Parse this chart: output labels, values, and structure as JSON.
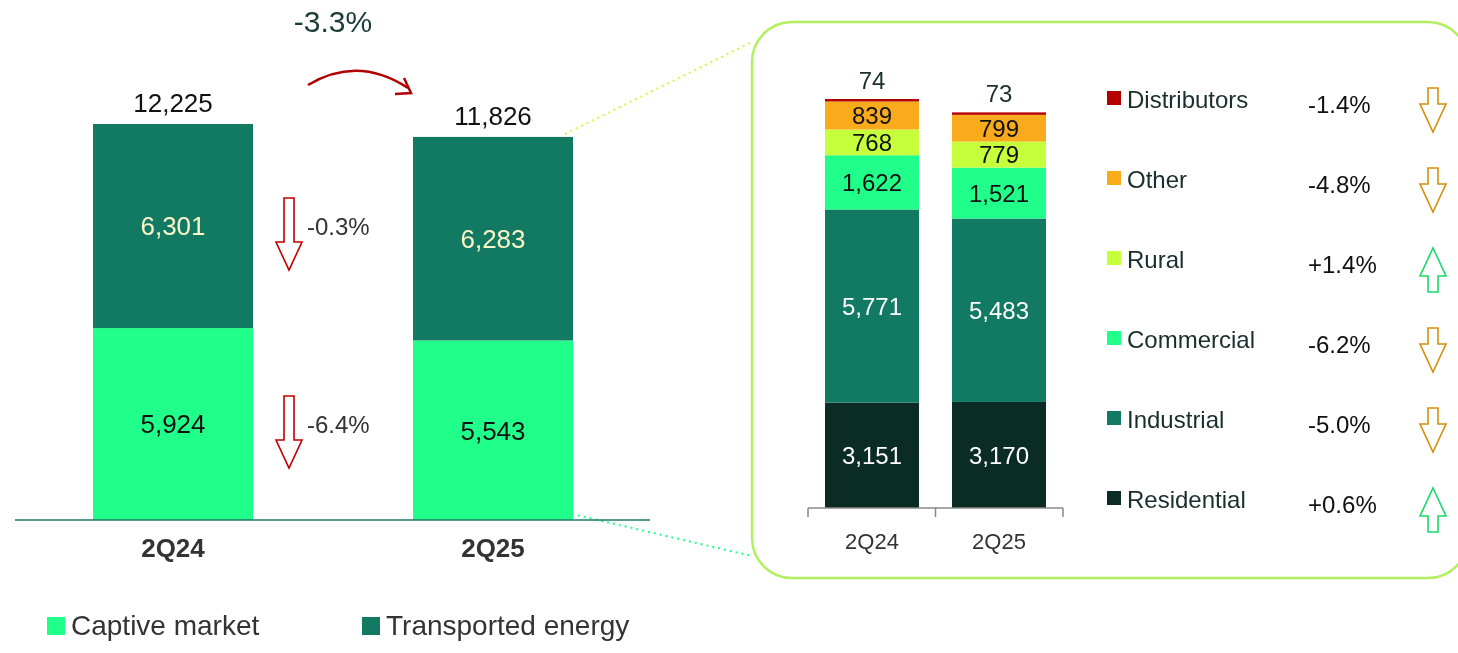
{
  "chart_data": [
    {
      "type": "bar",
      "stacked": true,
      "categories": [
        "2Q24",
        "2Q25"
      ],
      "series": [
        {
          "name": "Captive market",
          "color": "#20ff8a",
          "values": [
            5924,
            5543
          ],
          "value_labels": [
            "5,924",
            "5,543"
          ]
        },
        {
          "name": "Transported energy",
          "color": "#127a62",
          "values": [
            6301,
            6283
          ],
          "value_labels": [
            "6,301",
            "6,283"
          ]
        }
      ],
      "totals": [
        "12,225",
        "11,826"
      ],
      "legend": "bottom",
      "annotations": [
        "-3.3%",
        "-6.4%",
        "-0.3%"
      ]
    },
    {
      "type": "bar",
      "stacked": true,
      "categories": [
        "2Q24",
        "2Q25"
      ],
      "series": [
        {
          "name": "Residential",
          "color": "#0b2c24",
          "values": [
            3151,
            3170
          ],
          "value_labels": [
            "3,151",
            "3,170"
          ]
        },
        {
          "name": "Industrial",
          "color": "#127a62",
          "values": [
            5771,
            5483
          ],
          "value_labels": [
            "5,771",
            "5,483"
          ]
        },
        {
          "name": "Commercial",
          "color": "#20ff8a",
          "values": [
            1622,
            1521
          ],
          "value_labels": [
            "1,622",
            "1,521"
          ]
        },
        {
          "name": "Rural",
          "color": "#c6ff3c",
          "values": [
            768,
            779
          ],
          "value_labels": [
            "768",
            "779"
          ]
        },
        {
          "name": "Other",
          "color": "#f9ab1c",
          "values": [
            839,
            799
          ],
          "value_labels": [
            "839",
            "799"
          ]
        },
        {
          "name": "Distributors",
          "color": "#b30000",
          "values": [
            74,
            73
          ],
          "value_labels": [
            "74",
            "73"
          ]
        }
      ],
      "legend": "right",
      "annotations": [
        "-1.4%",
        "-4.8%",
        "+1.4%",
        "-6.2%",
        "-5.0%",
        "+0.6%"
      ]
    }
  ]
}
